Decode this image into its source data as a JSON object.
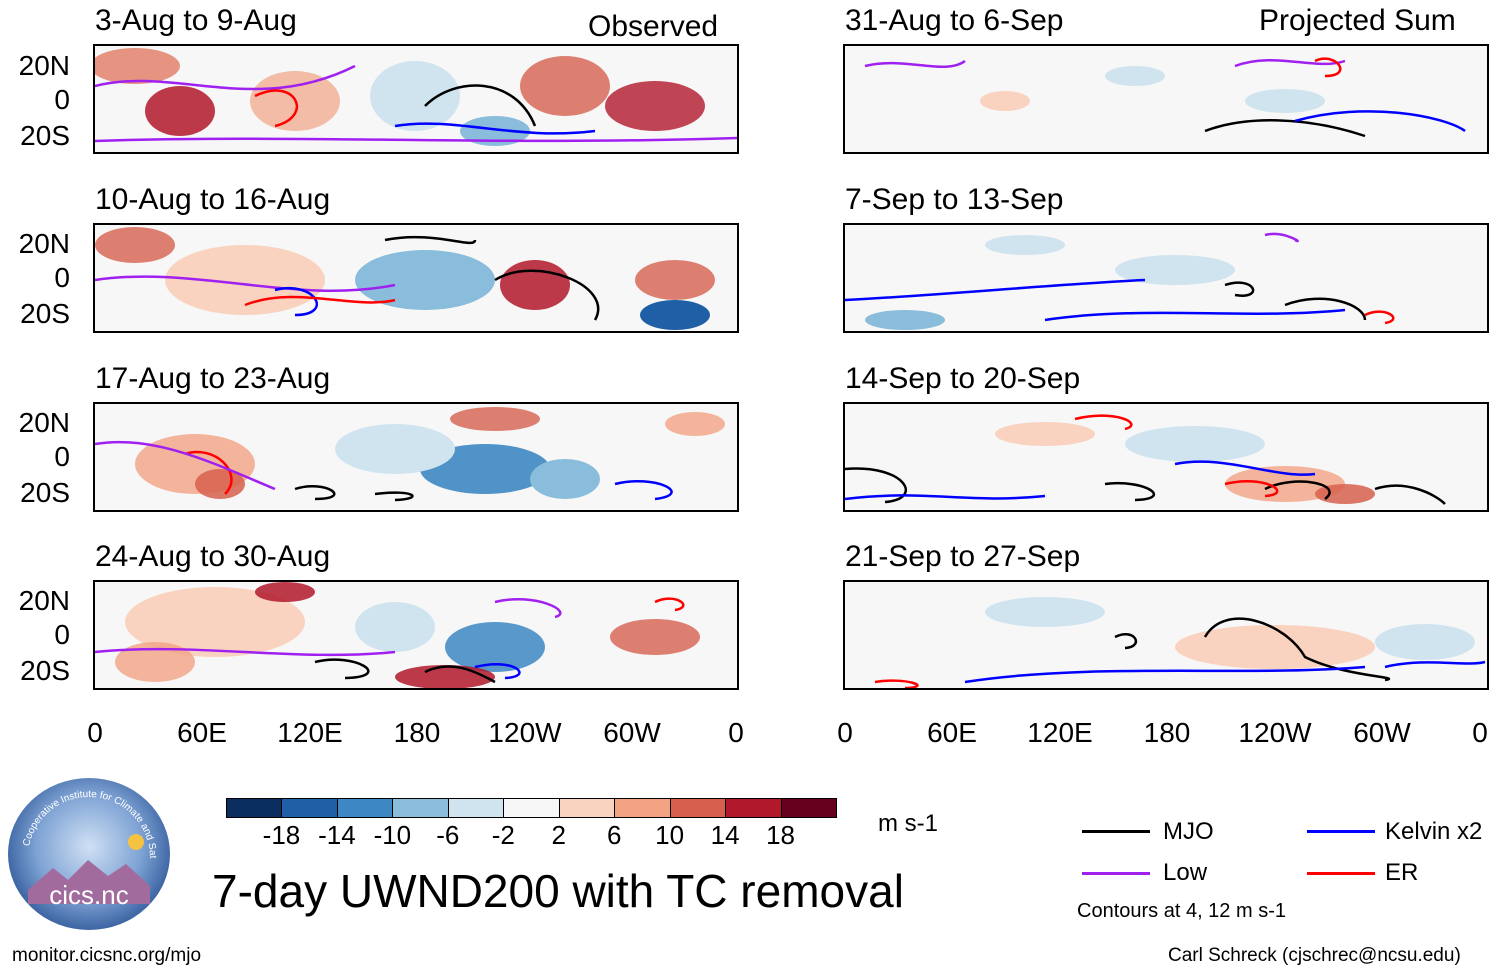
{
  "headers": {
    "observed": "Observed",
    "projected": "Projected Sum"
  },
  "panels": [
    {
      "title": "3-Aug to 9-Aug"
    },
    {
      "title": "31-Aug to 6-Sep"
    },
    {
      "title": "10-Aug to 16-Aug"
    },
    {
      "title": "7-Sep to 13-Sep"
    },
    {
      "title": "17-Aug to 23-Aug"
    },
    {
      "title": "14-Sep to 20-Sep"
    },
    {
      "title": "24-Aug to 30-Aug"
    },
    {
      "title": "21-Sep to 27-Sep"
    }
  ],
  "lat_labels": [
    "20N",
    "0",
    "20S"
  ],
  "lon_labels": [
    "0",
    "60E",
    "120E",
    "180",
    "120W",
    "60W",
    "0"
  ],
  "colorbar": {
    "ticks": [
      "-18",
      "-14",
      "-10",
      "-6",
      "-2",
      "2",
      "6",
      "10",
      "14",
      "18"
    ],
    "colors": [
      "#0b2e61",
      "#1f5fa6",
      "#3d87c2",
      "#89bddb",
      "#d0e4ef",
      "#f7f7f7",
      "#f9d3c0",
      "#f1a383",
      "#d6604d",
      "#b2182b",
      "#67001f"
    ],
    "units": "m s-1"
  },
  "main_title": "7-day UWND200 with TC removal",
  "legend": {
    "items": [
      {
        "label": "MJO",
        "color": "#000000"
      },
      {
        "label": "Kelvin x2",
        "color": "#0000ff"
      },
      {
        "label": "Low",
        "color": "#a020f0"
      },
      {
        "label": "ER",
        "color": "#ff0000"
      }
    ],
    "contours_note": "Contours at 4, 12 m s-1"
  },
  "footer": {
    "url": "monitor.cicsnc.org/mjo",
    "credit": "Carl Schreck (cjschrec@ncsu.edu)"
  },
  "logo": {
    "ring_text": "Cooperative Institute for Climate and Satellites",
    "name": "cics.nc"
  }
}
